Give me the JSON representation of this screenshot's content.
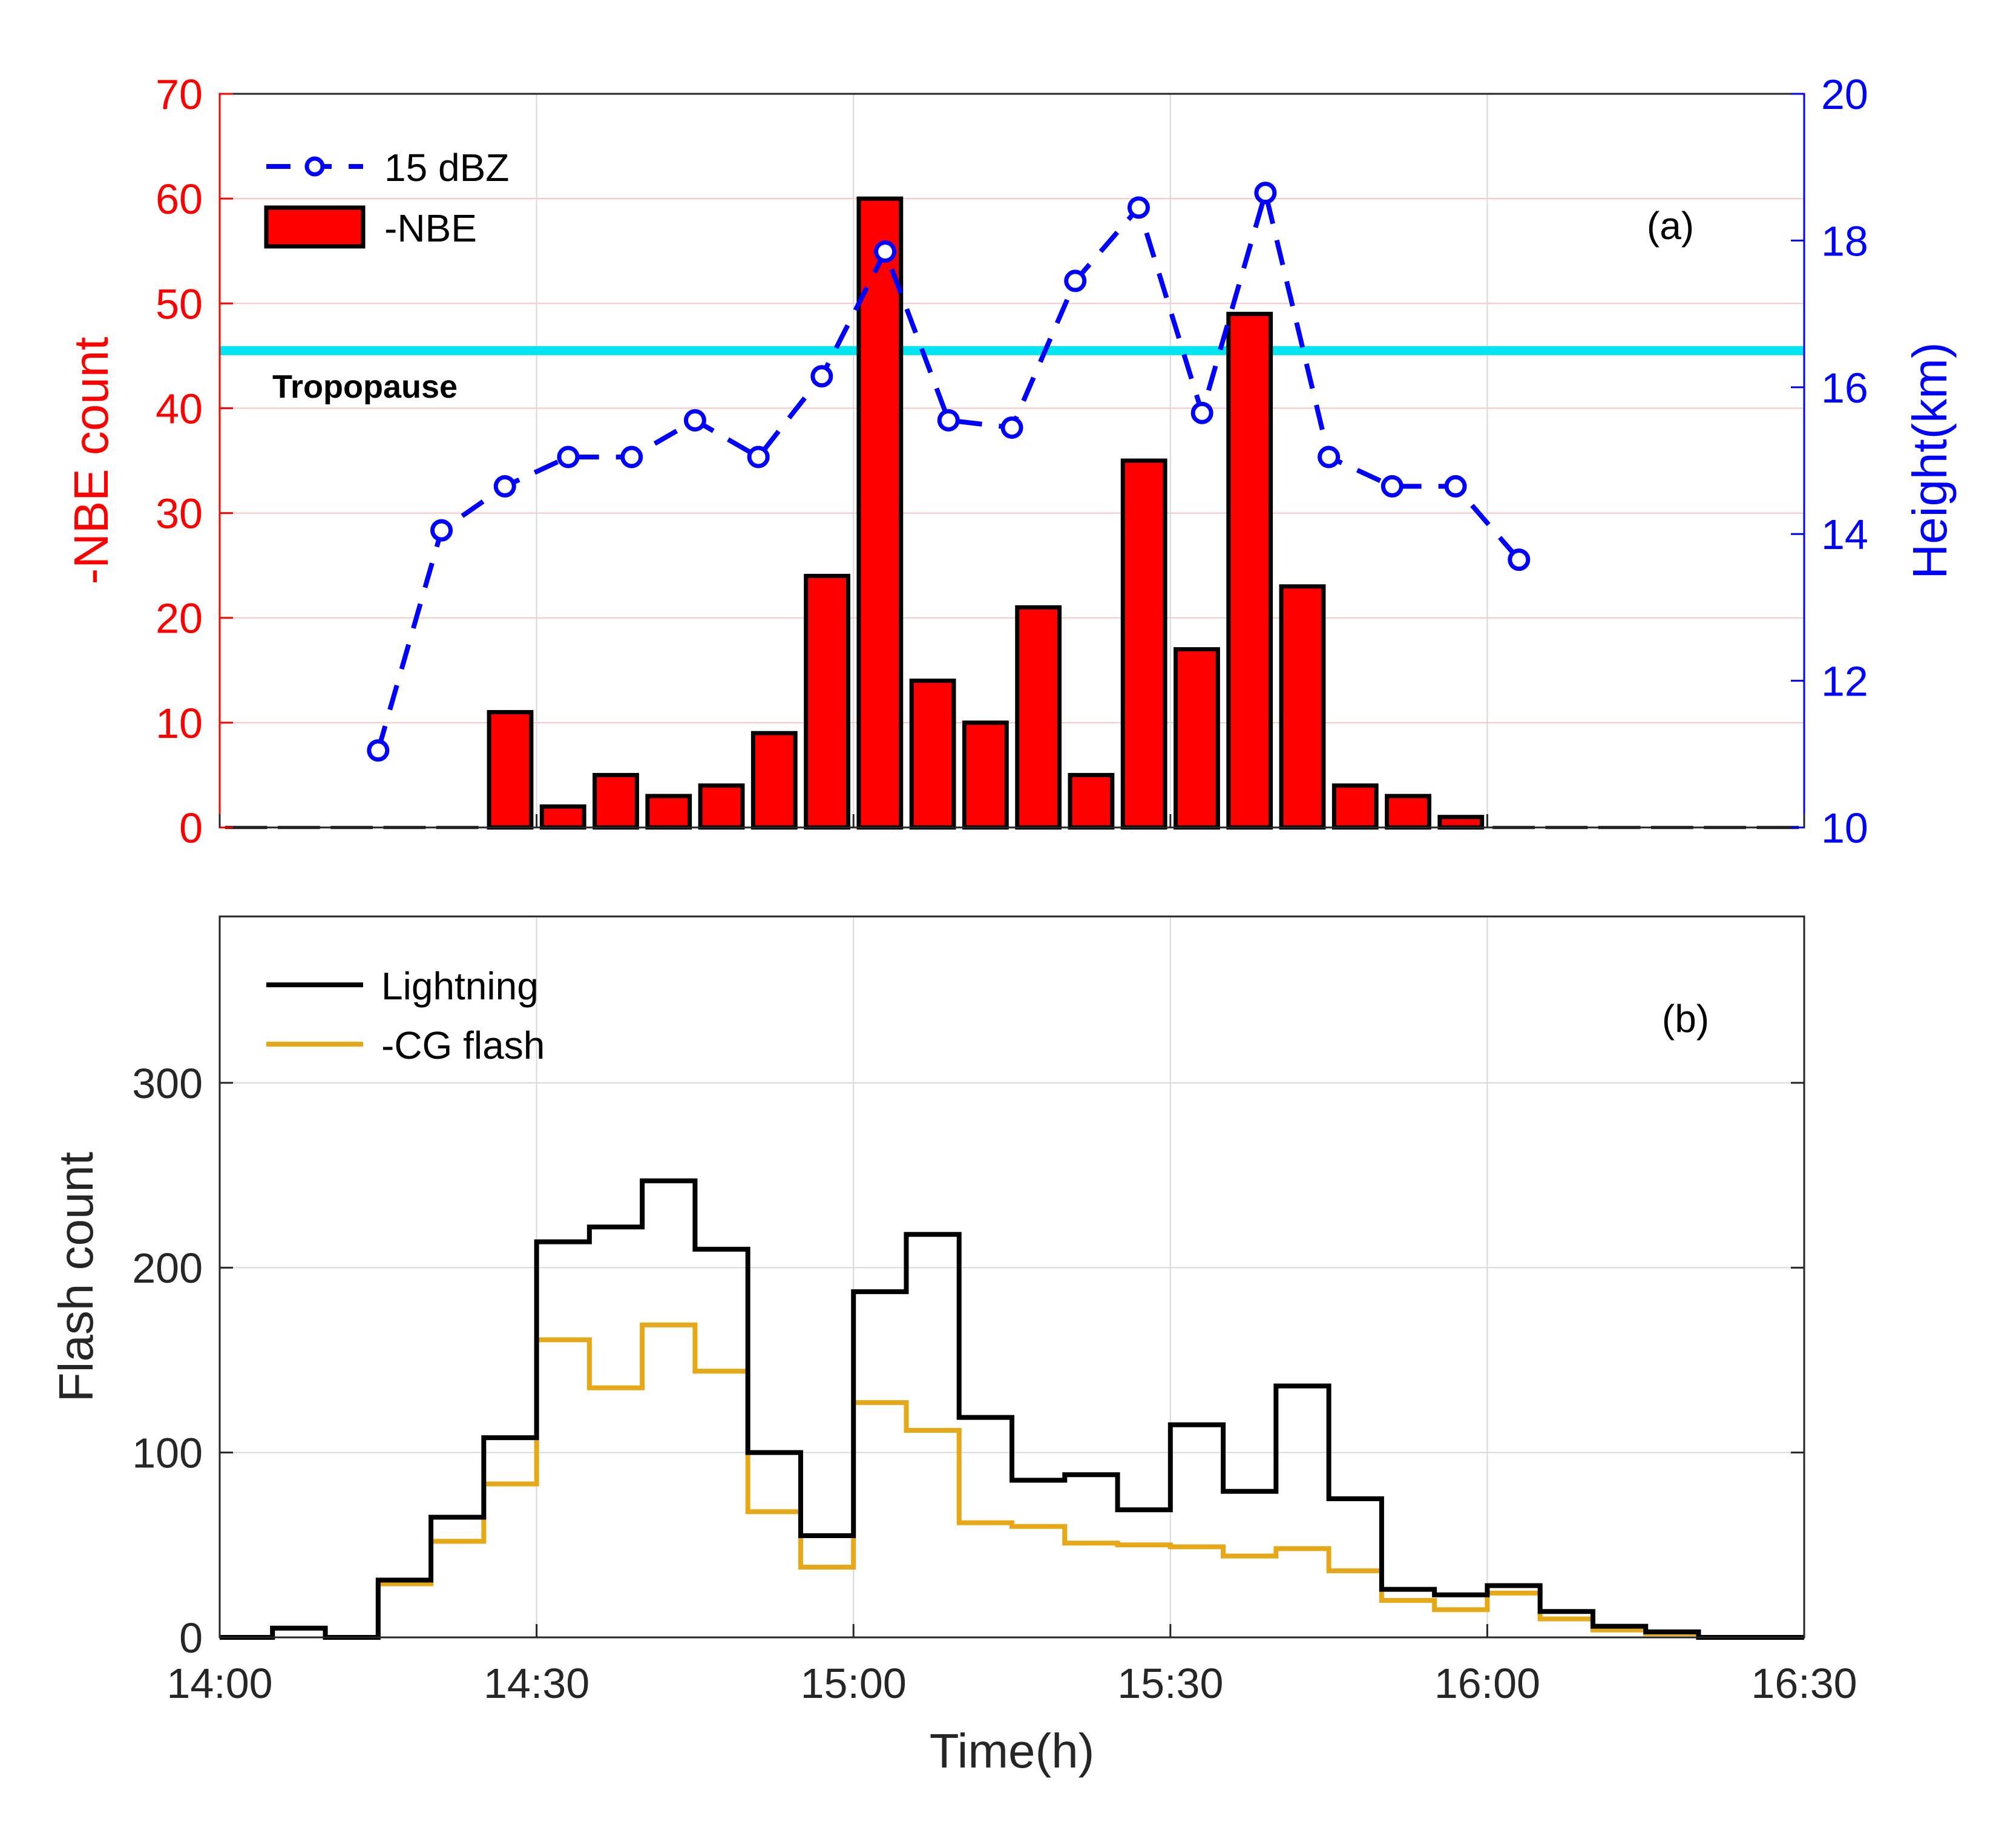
{
  "colors": {
    "nbe_axis": "#ff0000",
    "height_axis": "#0000ff",
    "nbe_bar": "#ff0000",
    "dbz_line": "#0000ff",
    "tropopause": "#00e5ee",
    "lightning": "#000000",
    "cg_flash": "#e6a817",
    "grid": "#d9d9d9",
    "nbe_grid": "#f7c5c5"
  },
  "chart_data": [
    {
      "type": "bar",
      "panel_label": "(a)",
      "ylabel": "-NBE count",
      "y2label": "Height(km)",
      "ylim": [
        0,
        70
      ],
      "y2lim": [
        10,
        20
      ],
      "yticks": [
        "0",
        "10",
        "20",
        "30",
        "40",
        "50",
        "60",
        "70"
      ],
      "y2ticks": [
        "10",
        "12",
        "14",
        "16",
        "18",
        "20"
      ],
      "xlim_minutes": [
        0,
        150
      ],
      "xtick_minutes": [
        0,
        30,
        60,
        90,
        120,
        150
      ],
      "grid": true,
      "tropopause": {
        "label": "Tropopause",
        "height_km": 16.5
      },
      "legend": {
        "position": "top-left",
        "line_label": "15 dBZ",
        "bar_label": "-NBE"
      },
      "bar_series": {
        "name": "-NBE",
        "bin_minutes": 5,
        "bin_start_minutes": [
          0,
          5,
          10,
          15,
          20,
          25,
          30,
          35,
          40,
          45,
          50,
          55,
          60,
          65,
          70,
          75,
          80,
          85,
          90,
          95,
          100,
          105,
          110,
          115,
          120,
          125,
          130,
          135,
          140,
          145
        ],
        "values": [
          0,
          0,
          0,
          0,
          0,
          11,
          2,
          5,
          3,
          4,
          9,
          24,
          60,
          14,
          10,
          21,
          5,
          35,
          17,
          49,
          23,
          4,
          3,
          1,
          0,
          0,
          0,
          0,
          0,
          0
        ]
      },
      "line_series": {
        "name": "15 dBZ",
        "x_minutes": [
          15,
          21,
          27,
          33,
          39,
          45,
          51,
          57,
          63,
          69,
          75,
          81,
          87,
          93,
          99,
          105,
          111,
          117,
          123
        ],
        "height_km": [
          11.05,
          14.05,
          14.65,
          15.05,
          15.05,
          15.55,
          15.05,
          16.15,
          17.85,
          15.55,
          15.45,
          17.45,
          18.45,
          15.65,
          18.65,
          15.05,
          14.65,
          14.65,
          13.65
        ]
      }
    },
    {
      "type": "line",
      "panel_label": "(b)",
      "xlabel": "Time(h)",
      "ylabel": "Flash count",
      "ylim": [
        0,
        390
      ],
      "yticks": [
        "0",
        "100",
        "200",
        "300"
      ],
      "xlim_minutes": [
        0,
        150
      ],
      "xtick_minutes": [
        0,
        30,
        60,
        90,
        120,
        150
      ],
      "xtick_labels": [
        "14:00",
        "14:30",
        "15:00",
        "15:30",
        "16:00",
        "16:30"
      ],
      "grid": true,
      "step": true,
      "bin_minutes": 5,
      "legend": {
        "position": "top-left"
      },
      "series": [
        {
          "name": "Lightning",
          "values": [
            0,
            5,
            0,
            31,
            65,
            108,
            214,
            222,
            247,
            210,
            100,
            55,
            187,
            218,
            119,
            85,
            88,
            69,
            115,
            79,
            136,
            75,
            26,
            23,
            28,
            14,
            6,
            3,
            0,
            0
          ]
        },
        {
          "name": "-CG flash",
          "values": [
            0,
            5,
            0,
            29,
            52,
            83,
            161,
            135,
            169,
            144,
            68,
            38,
            127,
            112,
            62,
            60,
            51,
            50,
            49,
            44,
            48,
            36,
            20,
            15,
            24,
            10,
            4,
            2,
            0,
            0
          ]
        }
      ]
    }
  ]
}
